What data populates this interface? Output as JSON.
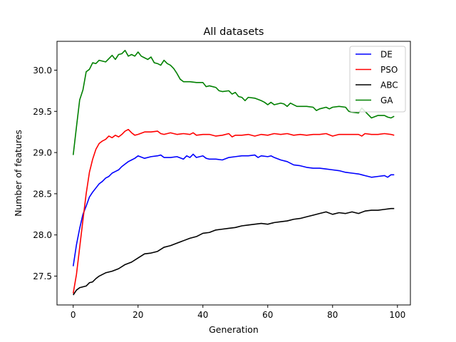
{
  "chart_data": {
    "type": "line",
    "title": "All datasets",
    "xlabel": "Generation",
    "ylabel": "Number of features",
    "xlim": [
      -5,
      104
    ],
    "ylim": [
      27.15,
      30.35
    ],
    "xticks": [
      0,
      20,
      40,
      60,
      80,
      100
    ],
    "yticks": [
      27.5,
      28.0,
      28.5,
      29.0,
      29.5,
      30.0
    ],
    "xtick_labels": [
      "0",
      "20",
      "40",
      "60",
      "80",
      "100"
    ],
    "ytick_labels": [
      "27.5",
      "28.0",
      "28.5",
      "29.0",
      "29.5",
      "30.0"
    ],
    "grid": false,
    "legend_position": "top-right",
    "series": [
      {
        "name": "DE",
        "color": "#0000ff",
        "points": [
          [
            0,
            27.62
          ],
          [
            1,
            27.88
          ],
          [
            2,
            28.08
          ],
          [
            3,
            28.25
          ],
          [
            4,
            28.35
          ],
          [
            5,
            28.46
          ],
          [
            6,
            28.52
          ],
          [
            7,
            28.57
          ],
          [
            8,
            28.62
          ],
          [
            9,
            28.65
          ],
          [
            10,
            28.69
          ],
          [
            11,
            28.71
          ],
          [
            12,
            28.75
          ],
          [
            13,
            28.77
          ],
          [
            14,
            28.79
          ],
          [
            15,
            28.83
          ],
          [
            16,
            28.86
          ],
          [
            17,
            28.89
          ],
          [
            18,
            28.91
          ],
          [
            19,
            28.93
          ],
          [
            20,
            28.96
          ],
          [
            22,
            28.93
          ],
          [
            24,
            28.95
          ],
          [
            26,
            28.96
          ],
          [
            27,
            28.97
          ],
          [
            28,
            28.94
          ],
          [
            30,
            28.94
          ],
          [
            32,
            28.95
          ],
          [
            34,
            28.92
          ],
          [
            35,
            28.96
          ],
          [
            36,
            28.94
          ],
          [
            37,
            28.98
          ],
          [
            38,
            28.94
          ],
          [
            40,
            28.96
          ],
          [
            41,
            28.93
          ],
          [
            42,
            28.92
          ],
          [
            44,
            28.92
          ],
          [
            46,
            28.91
          ],
          [
            48,
            28.94
          ],
          [
            50,
            28.95
          ],
          [
            52,
            28.96
          ],
          [
            54,
            28.96
          ],
          [
            56,
            28.97
          ],
          [
            57,
            28.94
          ],
          [
            58,
            28.96
          ],
          [
            60,
            28.95
          ],
          [
            61,
            28.96
          ],
          [
            62,
            28.94
          ],
          [
            64,
            28.91
          ],
          [
            66,
            28.89
          ],
          [
            68,
            28.85
          ],
          [
            70,
            28.84
          ],
          [
            72,
            28.82
          ],
          [
            74,
            28.81
          ],
          [
            76,
            28.81
          ],
          [
            78,
            28.8
          ],
          [
            80,
            28.79
          ],
          [
            82,
            28.78
          ],
          [
            84,
            28.76
          ],
          [
            86,
            28.75
          ],
          [
            88,
            28.74
          ],
          [
            90,
            28.72
          ],
          [
            92,
            28.7
          ],
          [
            94,
            28.71
          ],
          [
            96,
            28.72
          ],
          [
            97,
            28.7
          ],
          [
            98,
            28.73
          ],
          [
            99,
            28.73
          ]
        ]
      },
      {
        "name": "PSO",
        "color": "#ff0000",
        "points": [
          [
            0,
            27.29
          ],
          [
            1,
            27.52
          ],
          [
            2,
            27.85
          ],
          [
            3,
            28.18
          ],
          [
            4,
            28.5
          ],
          [
            5,
            28.76
          ],
          [
            6,
            28.92
          ],
          [
            7,
            29.04
          ],
          [
            8,
            29.11
          ],
          [
            9,
            29.14
          ],
          [
            10,
            29.16
          ],
          [
            11,
            29.2
          ],
          [
            12,
            29.18
          ],
          [
            13,
            29.21
          ],
          [
            14,
            29.19
          ],
          [
            15,
            29.22
          ],
          [
            16,
            29.26
          ],
          [
            17,
            29.28
          ],
          [
            18,
            29.24
          ],
          [
            19,
            29.21
          ],
          [
            20,
            29.22
          ],
          [
            22,
            29.25
          ],
          [
            24,
            29.25
          ],
          [
            26,
            29.26
          ],
          [
            27,
            29.23
          ],
          [
            28,
            29.22
          ],
          [
            30,
            29.24
          ],
          [
            32,
            29.22
          ],
          [
            34,
            29.23
          ],
          [
            36,
            29.22
          ],
          [
            37,
            29.24
          ],
          [
            38,
            29.21
          ],
          [
            40,
            29.22
          ],
          [
            42,
            29.22
          ],
          [
            44,
            29.2
          ],
          [
            46,
            29.21
          ],
          [
            48,
            29.23
          ],
          [
            49,
            29.19
          ],
          [
            50,
            29.21
          ],
          [
            52,
            29.21
          ],
          [
            54,
            29.22
          ],
          [
            56,
            29.2
          ],
          [
            58,
            29.22
          ],
          [
            60,
            29.21
          ],
          [
            62,
            29.23
          ],
          [
            64,
            29.22
          ],
          [
            66,
            29.23
          ],
          [
            68,
            29.21
          ],
          [
            70,
            29.22
          ],
          [
            72,
            29.21
          ],
          [
            74,
            29.22
          ],
          [
            76,
            29.22
          ],
          [
            78,
            29.23
          ],
          [
            80,
            29.2
          ],
          [
            82,
            29.22
          ],
          [
            84,
            29.22
          ],
          [
            86,
            29.22
          ],
          [
            88,
            29.22
          ],
          [
            89,
            29.2
          ],
          [
            90,
            29.23
          ],
          [
            92,
            29.22
          ],
          [
            94,
            29.22
          ],
          [
            96,
            29.23
          ],
          [
            98,
            29.22
          ],
          [
            99,
            29.21
          ]
        ]
      },
      {
        "name": "ABC",
        "color": "#000000",
        "points": [
          [
            0,
            27.27
          ],
          [
            1,
            27.33
          ],
          [
            2,
            27.36
          ],
          [
            4,
            27.38
          ],
          [
            5,
            27.42
          ],
          [
            6,
            27.43
          ],
          [
            7,
            27.47
          ],
          [
            8,
            27.5
          ],
          [
            10,
            27.54
          ],
          [
            12,
            27.56
          ],
          [
            14,
            27.59
          ],
          [
            16,
            27.64
          ],
          [
            18,
            27.67
          ],
          [
            20,
            27.72
          ],
          [
            22,
            27.77
          ],
          [
            24,
            27.78
          ],
          [
            26,
            27.8
          ],
          [
            28,
            27.85
          ],
          [
            30,
            27.87
          ],
          [
            32,
            27.9
          ],
          [
            34,
            27.93
          ],
          [
            36,
            27.96
          ],
          [
            38,
            27.98
          ],
          [
            40,
            28.02
          ],
          [
            42,
            28.03
          ],
          [
            44,
            28.06
          ],
          [
            46,
            28.07
          ],
          [
            48,
            28.08
          ],
          [
            50,
            28.09
          ],
          [
            52,
            28.11
          ],
          [
            54,
            28.12
          ],
          [
            56,
            28.13
          ],
          [
            58,
            28.14
          ],
          [
            60,
            28.13
          ],
          [
            62,
            28.15
          ],
          [
            64,
            28.16
          ],
          [
            66,
            28.17
          ],
          [
            68,
            28.19
          ],
          [
            70,
            28.2
          ],
          [
            72,
            28.22
          ],
          [
            74,
            28.24
          ],
          [
            76,
            28.26
          ],
          [
            78,
            28.28
          ],
          [
            80,
            28.25
          ],
          [
            82,
            28.27
          ],
          [
            84,
            28.26
          ],
          [
            86,
            28.28
          ],
          [
            88,
            28.26
          ],
          [
            90,
            28.29
          ],
          [
            92,
            28.3
          ],
          [
            94,
            28.3
          ],
          [
            96,
            28.31
          ],
          [
            98,
            28.32
          ],
          [
            99,
            28.32
          ]
        ]
      },
      {
        "name": "GA",
        "color": "#008000",
        "points": [
          [
            0,
            28.97
          ],
          [
            1,
            29.31
          ],
          [
            2,
            29.64
          ],
          [
            3,
            29.76
          ],
          [
            4,
            29.98
          ],
          [
            5,
            30.01
          ],
          [
            6,
            30.09
          ],
          [
            7,
            30.08
          ],
          [
            8,
            30.12
          ],
          [
            9,
            30.11
          ],
          [
            10,
            30.1
          ],
          [
            11,
            30.14
          ],
          [
            12,
            30.18
          ],
          [
            13,
            30.13
          ],
          [
            14,
            30.19
          ],
          [
            15,
            30.2
          ],
          [
            16,
            30.24
          ],
          [
            17,
            30.17
          ],
          [
            18,
            30.19
          ],
          [
            19,
            30.17
          ],
          [
            20,
            30.22
          ],
          [
            21,
            30.17
          ],
          [
            22,
            30.15
          ],
          [
            23,
            30.13
          ],
          [
            24,
            30.16
          ],
          [
            25,
            30.09
          ],
          [
            26,
            30.08
          ],
          [
            27,
            30.06
          ],
          [
            28,
            30.12
          ],
          [
            29,
            30.08
          ],
          [
            30,
            30.06
          ],
          [
            31,
            30.02
          ],
          [
            32,
            29.96
          ],
          [
            33,
            29.89
          ],
          [
            34,
            29.86
          ],
          [
            36,
            29.86
          ],
          [
            38,
            29.85
          ],
          [
            40,
            29.85
          ],
          [
            41,
            29.8
          ],
          [
            42,
            29.81
          ],
          [
            44,
            29.79
          ],
          [
            45,
            29.75
          ],
          [
            46,
            29.74
          ],
          [
            48,
            29.75
          ],
          [
            49,
            29.71
          ],
          [
            50,
            29.73
          ],
          [
            51,
            29.68
          ],
          [
            52,
            29.67
          ],
          [
            53,
            29.63
          ],
          [
            54,
            29.67
          ],
          [
            56,
            29.66
          ],
          [
            58,
            29.63
          ],
          [
            59,
            29.61
          ],
          [
            60,
            29.58
          ],
          [
            61,
            29.61
          ],
          [
            62,
            29.58
          ],
          [
            64,
            29.6
          ],
          [
            65,
            29.59
          ],
          [
            66,
            29.56
          ],
          [
            67,
            29.6
          ],
          [
            68,
            29.58
          ],
          [
            69,
            29.56
          ],
          [
            70,
            29.56
          ],
          [
            72,
            29.56
          ],
          [
            74,
            29.55
          ],
          [
            75,
            29.51
          ],
          [
            76,
            29.53
          ],
          [
            78,
            29.55
          ],
          [
            79,
            29.53
          ],
          [
            80,
            29.55
          ],
          [
            82,
            29.56
          ],
          [
            84,
            29.55
          ],
          [
            85,
            29.5
          ],
          [
            86,
            29.49
          ],
          [
            88,
            29.48
          ],
          [
            89,
            29.54
          ],
          [
            90,
            29.5
          ],
          [
            91,
            29.46
          ],
          [
            92,
            29.42
          ],
          [
            94,
            29.45
          ],
          [
            96,
            29.45
          ],
          [
            97,
            29.43
          ],
          [
            98,
            29.42
          ],
          [
            99,
            29.44
          ]
        ]
      }
    ]
  }
}
